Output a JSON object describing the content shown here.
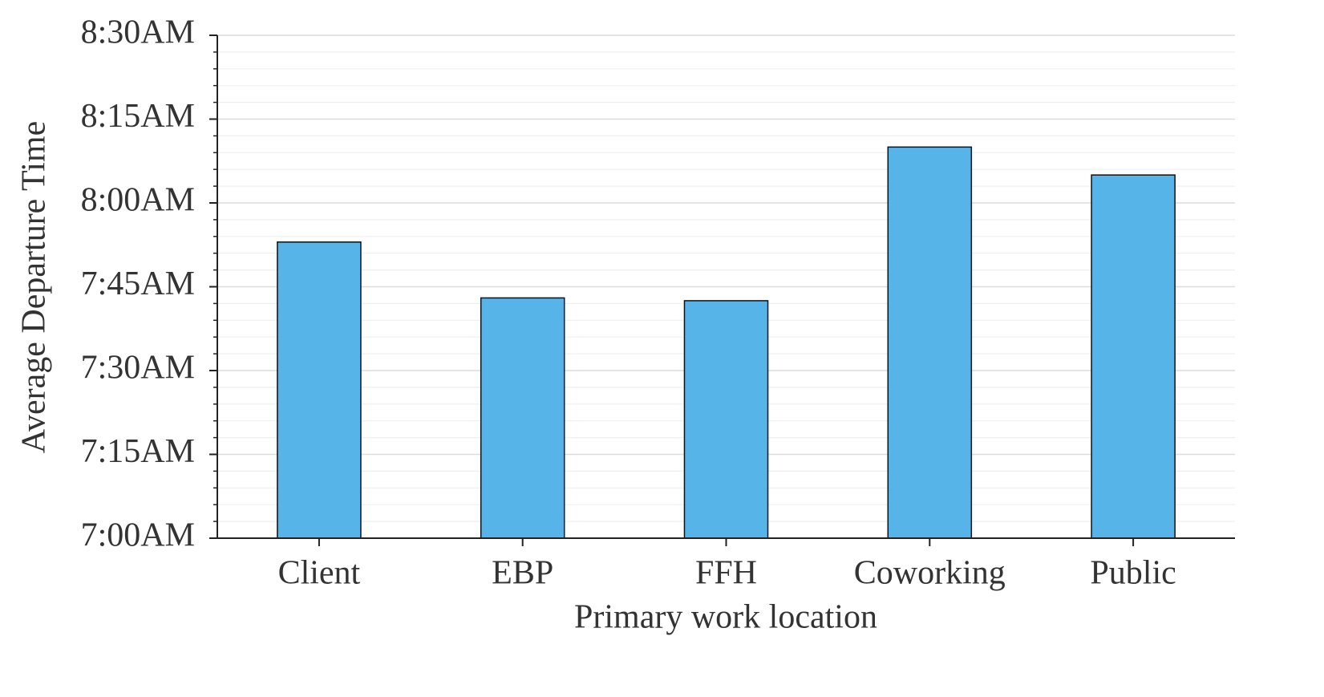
{
  "chart_data": {
    "type": "bar",
    "x_label": "Primary work location",
    "y_label": "Average Departure Time",
    "categories": [
      "Client",
      "EBP",
      "FFH",
      "Coworking",
      "Public"
    ],
    "values": [
      473,
      463,
      462.5,
      490,
      485
    ],
    "color": "#56b4e9",
    "ylim": [
      420,
      510
    ],
    "yticks": [
      {
        "value": 420,
        "label": "7:00AM"
      },
      {
        "value": 435,
        "label": "7:15AM"
      },
      {
        "value": 450,
        "label": "7:30AM"
      },
      {
        "value": 465,
        "label": "7:45AM"
      },
      {
        "value": 480,
        "label": "8:00AM"
      },
      {
        "value": 495,
        "label": "8:15AM"
      },
      {
        "value": 510,
        "label": "8:30AM"
      }
    ],
    "minor_yticks": [
      423,
      426,
      429,
      432,
      438,
      441,
      444,
      447,
      453,
      456,
      459,
      462,
      468,
      471,
      474,
      477,
      483,
      486,
      489,
      492,
      498,
      501,
      504,
      507
    ],
    "grid": true
  }
}
